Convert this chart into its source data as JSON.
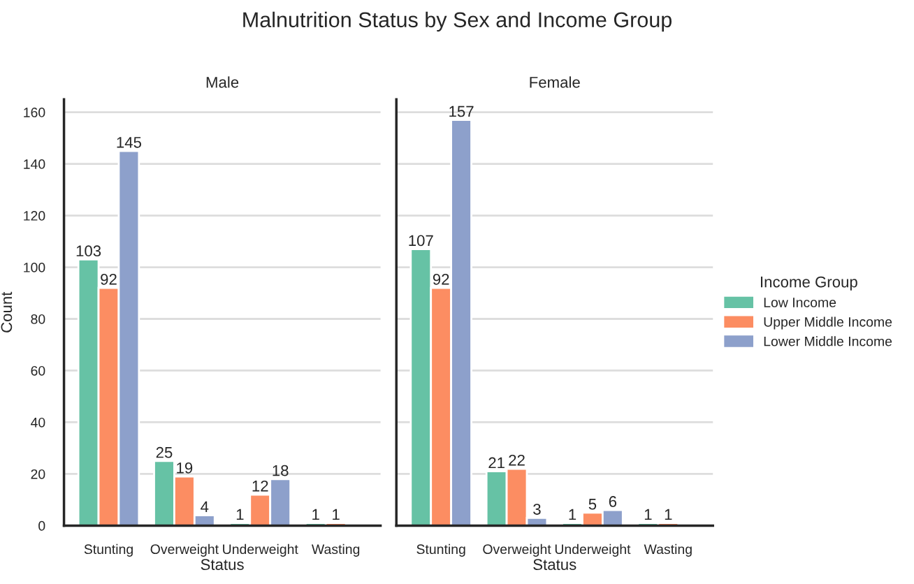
{
  "chart_data": [
    {
      "type": "bar",
      "title": "Male",
      "xlabel": "Status",
      "ylabel": "Count",
      "annotations": [
        "Malnutrition Status by Sex and Income Group"
      ],
      "categories": [
        "Stunting",
        "Overweight",
        "Underweight",
        "Wasting"
      ],
      "series": [
        {
          "color": "#66c2a5",
          "values": [
            103,
            25,
            1,
            1
          ]
        },
        {
          "color": "#fc8d62",
          "values": [
            92,
            19,
            12,
            1
          ]
        },
        {
          "color": "#8da0cb",
          "values": [
            145,
            4,
            18,
            null
          ]
        }
      ],
      "ylim": [
        0,
        165
      ],
      "yticks": [
        0,
        20,
        40,
        60,
        80,
        100,
        120,
        140,
        160
      ],
      "grid": "y",
      "data_labels": true
    },
    {
      "type": "bar",
      "title": "Female",
      "xlabel": "Status",
      "categories": [
        "Stunting",
        "Overweight",
        "Underweight",
        "Wasting"
      ],
      "series": [
        {
          "name": "Low Income",
          "color": "#66c2a5",
          "values": [
            107,
            21,
            1,
            1
          ]
        },
        {
          "name": "Upper Middle Income",
          "color": "#fc8d62",
          "values": [
            92,
            22,
            5,
            1
          ]
        },
        {
          "name": "Lower Middle Income",
          "color": "#8da0cb",
          "values": [
            157,
            3,
            6,
            null
          ]
        }
      ],
      "ylim": [
        0,
        165
      ],
      "yticks": [
        0,
        20,
        40,
        60,
        80,
        100,
        120,
        140,
        160
      ],
      "grid": "y",
      "data_labels": true,
      "tick_labels": "x",
      "legend": "right",
      "legend_title": "Income Group"
    }
  ]
}
